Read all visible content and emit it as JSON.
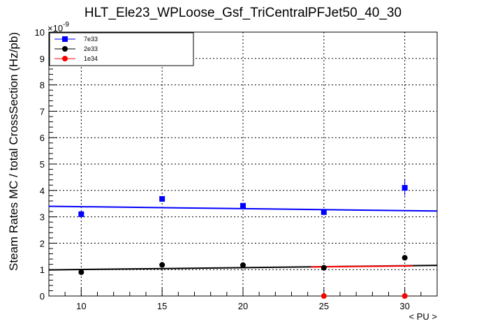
{
  "chart_data": {
    "type": "scatter",
    "title": "HLT_Ele23_WPLoose_Gsf_TriCentralPFJet50_40_30",
    "xlabel": "< PU >",
    "ylabel": "Steam Rates MC / total CrossSection (Hz/pb)",
    "y_exponent_label": "×10",
    "y_exponent_power": "-9",
    "xlim": [
      8,
      32
    ],
    "ylim": [
      0,
      10
    ],
    "x_ticks": [
      10,
      15,
      20,
      25,
      30
    ],
    "x_tick_labels": [
      "10",
      "15",
      "20",
      "25",
      "30"
    ],
    "y_ticks": [
      0,
      1,
      2,
      3,
      4,
      5,
      6,
      7,
      8,
      9,
      10
    ],
    "y_tick_labels": [
      "0",
      "1",
      "2",
      "3",
      "4",
      "5",
      "6",
      "7",
      "8",
      "9",
      "10"
    ],
    "grid": true,
    "legend_position": "top-left",
    "series": [
      {
        "name": "7e33",
        "color": "#0000ff",
        "marker": "square",
        "x": [
          10,
          15,
          20,
          25,
          30
        ],
        "y": [
          3.1,
          3.68,
          3.42,
          3.18,
          4.1
        ],
        "yerr": [
          0.08,
          0.1,
          0.1,
          0.12,
          0.3
        ],
        "fit": {
          "x": [
            8,
            32
          ],
          "y": [
            3.4,
            3.22
          ]
        }
      },
      {
        "name": "2e33",
        "color": "#000000",
        "marker": "circle",
        "x": [
          10,
          15,
          20,
          25,
          30
        ],
        "y": [
          0.9,
          1.18,
          1.17,
          1.07,
          1.45
        ],
        "yerr": [
          0.04,
          0.05,
          0.05,
          0.05,
          0.06
        ],
        "fit": {
          "x": [
            8,
            32
          ],
          "y": [
            0.99,
            1.16
          ]
        }
      },
      {
        "name": "1e34",
        "color": "#ff0000",
        "marker": "circle",
        "x": [
          25,
          30
        ],
        "y": [
          0.0,
          0.0
        ],
        "yerr": [
          0,
          0
        ],
        "fit": {
          "x": [
            24.2,
            30.5
          ],
          "y": [
            1.1,
            1.14
          ]
        }
      }
    ]
  }
}
